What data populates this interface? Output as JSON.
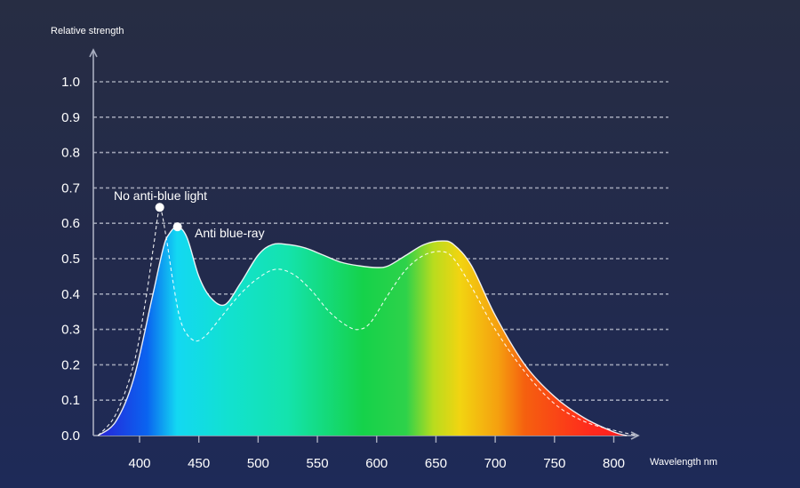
{
  "chart_data": {
    "type": "area",
    "ylabel": "Relative strength",
    "xlabel": "Wavelength nm",
    "xlim": [
      365,
      820
    ],
    "ylim": [
      0,
      1.0
    ],
    "x_ticks": [
      400,
      450,
      500,
      550,
      600,
      650,
      700,
      750,
      800
    ],
    "y_ticks": [
      0.0,
      0.1,
      0.2,
      0.3,
      0.4,
      0.5,
      0.6,
      0.7,
      0.8,
      0.9,
      1.0
    ],
    "y_tick_labels": [
      "0.0",
      "0.1",
      "0.2",
      "0.3",
      "0.4",
      "0.5",
      "0.6",
      "0.7",
      "0.8",
      "0.9",
      "1.0"
    ],
    "grid": "horizontal-dashed",
    "series": [
      {
        "name": "Anti blue-ray",
        "style": "filled-spectrum",
        "x": [
          365,
          380,
          395,
          410,
          420,
          425,
          432,
          440,
          450,
          460,
          472,
          485,
          500,
          512,
          525,
          540,
          555,
          570,
          585,
          600,
          610,
          625,
          640,
          655,
          665,
          680,
          700,
          725,
          750,
          775,
          800,
          811
        ],
        "y": [
          0.0,
          0.04,
          0.16,
          0.38,
          0.53,
          0.57,
          0.59,
          0.56,
          0.45,
          0.39,
          0.37,
          0.43,
          0.51,
          0.54,
          0.54,
          0.53,
          0.51,
          0.49,
          0.48,
          0.475,
          0.48,
          0.51,
          0.54,
          0.55,
          0.54,
          0.48,
          0.34,
          0.2,
          0.11,
          0.05,
          0.01,
          0.0
        ]
      },
      {
        "name": "No anti-blue light",
        "style": "dashed",
        "x": [
          365,
          380,
          395,
          405,
          412,
          417,
          422,
          428,
          435,
          445,
          455,
          470,
          485,
          500,
          515,
          530,
          545,
          560,
          575,
          585,
          595,
          610,
          625,
          640,
          655,
          665,
          680,
          700,
          725,
          750,
          775,
          800,
          820
        ],
        "y": [
          0.0,
          0.06,
          0.2,
          0.38,
          0.54,
          0.64,
          0.57,
          0.44,
          0.32,
          0.27,
          0.28,
          0.34,
          0.4,
          0.445,
          0.47,
          0.455,
          0.41,
          0.35,
          0.31,
          0.3,
          0.32,
          0.4,
          0.47,
          0.51,
          0.52,
          0.5,
          0.42,
          0.3,
          0.18,
          0.09,
          0.04,
          0.015,
          0.0
        ]
      }
    ],
    "annotations": [
      {
        "text": "No anti-blue light",
        "x": 417,
        "y": 0.645
      },
      {
        "text": "Anti blue-ray",
        "x": 432,
        "y": 0.59
      }
    ],
    "spectrum_colors": {
      "violet": "#2a1dd6",
      "blue": "#0a64f0",
      "cyan": "#13d8f2",
      "teal": "#14e3ad",
      "green": "#15d24a",
      "yellow": "#f2d411",
      "orange": "#f5600f",
      "red": "#ff1a22"
    },
    "colors": {
      "background_top": "#272d43",
      "background_bottom": "#1e2a58",
      "grid": "#c4c8d6",
      "axis": "#a9aec0",
      "text": "#ffffff"
    }
  }
}
